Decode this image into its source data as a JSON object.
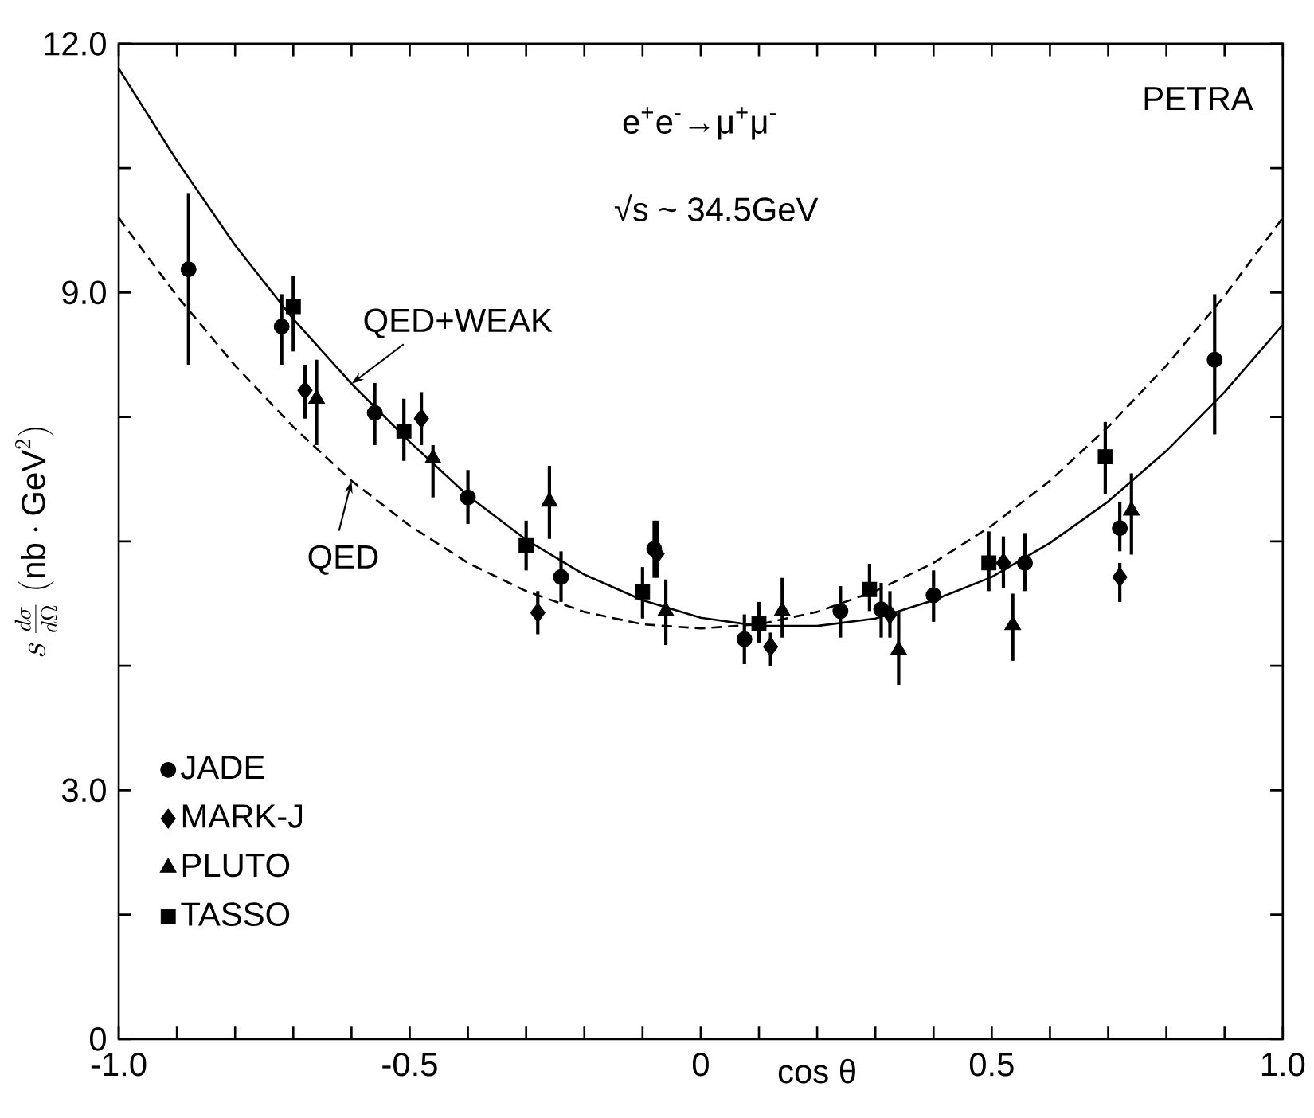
{
  "chart_data": {
    "type": "scatter",
    "xlabel": "cos θ",
    "ylabel": "s\\,\\frac{d\\sigma}{d\\Omega}\\;(\\mathrm{nb}\\cdot\\mathrm{GeV}^{2})",
    "xlim": [
      -1,
      1
    ],
    "ylim": [
      0,
      12
    ],
    "xticks": [
      {
        "value": -1,
        "label": "-1.0"
      },
      {
        "value": -0.9,
        "label": null
      },
      {
        "value": -0.8,
        "label": null
      },
      {
        "value": -0.7,
        "label": null
      },
      {
        "value": -0.6,
        "label": null
      },
      {
        "value": -0.5,
        "label": "-0.5"
      },
      {
        "value": -0.4,
        "label": null
      },
      {
        "value": -0.3,
        "label": null
      },
      {
        "value": -0.2,
        "label": null
      },
      {
        "value": -0.1,
        "label": null
      },
      0,
      {
        "value": 0.1,
        "label": null
      },
      {
        "value": 0.2,
        "label": null
      },
      {
        "value": 0.3,
        "label": null
      },
      {
        "value": 0.4,
        "label": null
      },
      0.5,
      {
        "value": 0.6,
        "label": null
      },
      {
        "value": 0.7,
        "label": null
      },
      {
        "value": 0.8,
        "label": null
      },
      {
        "value": 0.9,
        "label": null
      },
      {
        "value": 1,
        "label": "1.0"
      }
    ],
    "yticks": [
      0,
      {
        "value": 1.5,
        "label": null
      },
      {
        "value": 3,
        "label": "3.0"
      },
      {
        "value": 4.5,
        "label": null
      },
      {
        "value": 6,
        "label": null
      },
      {
        "value": 7.5,
        "label": null
      },
      {
        "value": 9,
        "label": "9.0"
      },
      {
        "value": 10.5,
        "label": null
      },
      {
        "value": 12,
        "label": "12.0"
      }
    ],
    "legend": "bottom left",
    "series": [
      {
        "type": "line",
        "line_style": "solid",
        "color": "#000000",
        "x": [
          -1,
          -0.9,
          -0.8,
          -0.7,
          -0.6,
          -0.5,
          -0.4,
          -0.3,
          -0.2,
          -0.1,
          0,
          0.1,
          0.2,
          0.3,
          0.4,
          0.5,
          0.6,
          0.7,
          0.8,
          0.9,
          1
        ],
        "values": [
          11.7,
          10.59,
          9.57,
          8.68,
          7.9,
          7.2,
          6.55,
          6.02,
          5.6,
          5.29,
          5.08,
          4.98,
          4.98,
          5.07,
          5.29,
          5.57,
          5.98,
          6.48,
          7.09,
          7.8,
          8.61
        ]
      },
      {
        "type": "line",
        "line_style": "dashed",
        "color": "#000000",
        "x": [
          -1,
          -0.9,
          -0.8,
          -0.7,
          -0.6,
          -0.5,
          -0.4,
          -0.3,
          -0.2,
          -0.1,
          0,
          0.1,
          0.2,
          0.3,
          0.4,
          0.5,
          0.6,
          0.7,
          0.8,
          0.9,
          1
        ],
        "values": [
          9.9,
          8.96,
          8.12,
          7.38,
          6.73,
          6.19,
          5.74,
          5.4,
          5.15,
          5.0,
          4.95,
          5.0,
          5.15,
          5.4,
          5.74,
          6.19,
          6.73,
          7.38,
          8.12,
          8.96,
          9.9
        ]
      },
      {
        "name": "JADE",
        "marker": "circle",
        "color": "#000000",
        "x": [
          -0.88,
          -0.72,
          -0.56,
          -0.4,
          -0.24,
          -0.08,
          0.075,
          0.24,
          0.31,
          0.4,
          0.557,
          0.72,
          0.883
        ],
        "values": [
          9.28,
          8.59,
          7.55,
          6.53,
          5.57,
          5.91,
          4.82,
          5.16,
          5.18,
          5.35,
          5.74,
          6.16,
          8.19
        ],
        "errors": [
          [
            8.13,
            10.2
          ],
          [
            8.13,
            8.98
          ],
          [
            7.16,
            7.91
          ],
          [
            6.21,
            6.86
          ],
          [
            5.27,
            5.88
          ],
          [
            5.56,
            6.25
          ],
          [
            4.52,
            5.12
          ],
          [
            4.84,
            5.46
          ],
          [
            4.84,
            5.5
          ],
          [
            5.03,
            5.65
          ],
          [
            5.4,
            6.1
          ],
          [
            5.88,
            6.48
          ],
          [
            7.29,
            8.98
          ]
        ]
      },
      {
        "name": "MARK-J",
        "marker": "diamond",
        "color": "#000000",
        "x": [
          -0.68,
          -0.48,
          -0.28,
          -0.075,
          0.12,
          0.325,
          0.52,
          0.72
        ],
        "values": [
          7.82,
          7.48,
          5.14,
          5.85,
          4.73,
          5.12,
          5.74,
          5.57
        ],
        "errors": [
          [
            7.48,
            8.13
          ],
          [
            7.16,
            7.8
          ],
          [
            4.88,
            5.4
          ],
          [
            5.56,
            6.25
          ],
          [
            4.5,
            4.9
          ],
          [
            4.84,
            5.4
          ],
          [
            5.44,
            6.06
          ],
          [
            5.27,
            5.74
          ]
        ]
      },
      {
        "name": "PLUTO",
        "marker": "triangle",
        "color": "#000000",
        "x": [
          -0.66,
          -0.46,
          -0.26,
          -0.06,
          0.14,
          0.34,
          0.536,
          0.74
        ],
        "values": [
          7.72,
          7.0,
          6.48,
          5.16,
          5.16,
          4.69,
          4.99,
          6.37
        ],
        "errors": [
          [
            7.16,
            8.19
          ],
          [
            6.53,
            7.16
          ],
          [
            6.03,
            6.91
          ],
          [
            4.75,
            5.54
          ],
          [
            4.84,
            5.56
          ],
          [
            4.27,
            5.16
          ],
          [
            4.56,
            5.37
          ],
          [
            5.84,
            6.82
          ]
        ]
      },
      {
        "name": "TASSO",
        "marker": "square",
        "color": "#000000",
        "x": [
          -0.7,
          -0.51,
          -0.3,
          -0.1,
          0.1,
          0.29,
          0.495,
          0.695
        ],
        "values": [
          8.83,
          7.33,
          5.95,
          5.39,
          5.01,
          5.42,
          5.74,
          7.02
        ],
        "errors": [
          [
            8.29,
            9.2
          ],
          [
            6.97,
            7.72
          ],
          [
            5.65,
            6.25
          ],
          [
            5.07,
            5.69
          ],
          [
            4.78,
            5.27
          ],
          [
            5.16,
            5.73
          ],
          [
            5.4,
            6.12
          ],
          [
            6.57,
            7.44
          ]
        ]
      }
    ],
    "annotations": [
      "PETRA",
      "e$^{+}$e$^{-}$→μ$^{+}$μ$^{-}$",
      "√s ~ 34.5GeV",
      {
        "text": "QED+WEAK",
        "x": -0.6,
        "y": 7.9
      },
      {
        "text": "QED",
        "x": -0.6,
        "y": 6.73
      }
    ]
  }
}
